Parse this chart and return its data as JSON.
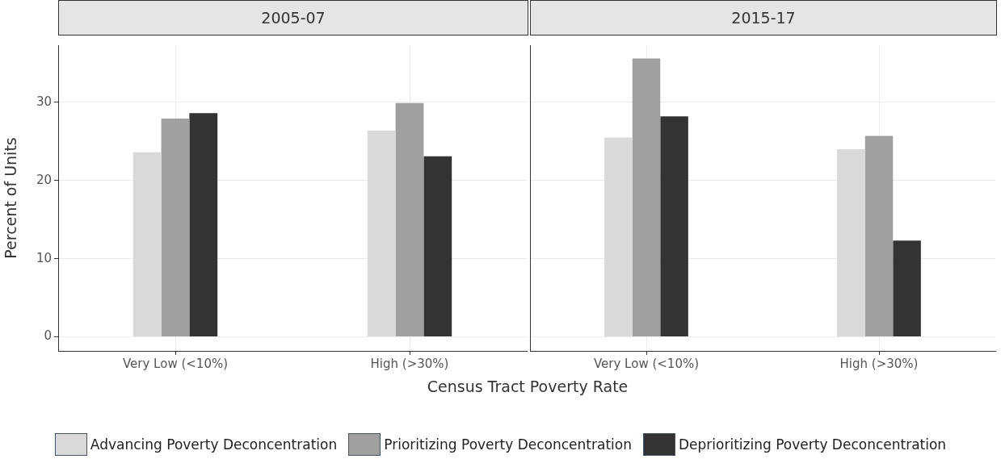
{
  "chart_data": [
    {
      "type": "bar",
      "title": "2005-07",
      "xlabel": "Census Tract Poverty Rate",
      "ylabel": "Percent of Units",
      "categories": [
        "Very Low (<10%)",
        "High (>30%)"
      ],
      "ylim": [
        -1.8,
        37.3
      ],
      "yticks": [
        0,
        10,
        20,
        30
      ],
      "grid": true,
      "legend": "bottom",
      "series": [
        {
          "name": "Advancing Poverty Deconcentration",
          "color": "#d9d9d9",
          "values": [
            23.6,
            26.4
          ]
        },
        {
          "name": "Prioritizing Poverty Deconcentration",
          "color": "#a0a0a0",
          "values": [
            27.9,
            29.9
          ]
        },
        {
          "name": "Deprioritizing Poverty Deconcentration",
          "color": "#333333",
          "values": [
            28.6,
            23.1
          ]
        }
      ]
    },
    {
      "type": "bar",
      "title": "2015-17",
      "categories": [
        "Very Low (<10%)",
        "High (>30%)"
      ],
      "ylim": [
        -1.8,
        37.3
      ],
      "yticks": [
        0,
        10,
        20,
        30
      ],
      "grid": true,
      "tick_labels": "x",
      "series": [
        {
          "color": "#d9d9d9",
          "values": [
            25.5,
            24.0
          ]
        },
        {
          "color": "#a0a0a0",
          "values": [
            35.6,
            25.7
          ]
        },
        {
          "color": "#333333",
          "values": [
            28.2,
            12.3
          ]
        }
      ]
    }
  ]
}
